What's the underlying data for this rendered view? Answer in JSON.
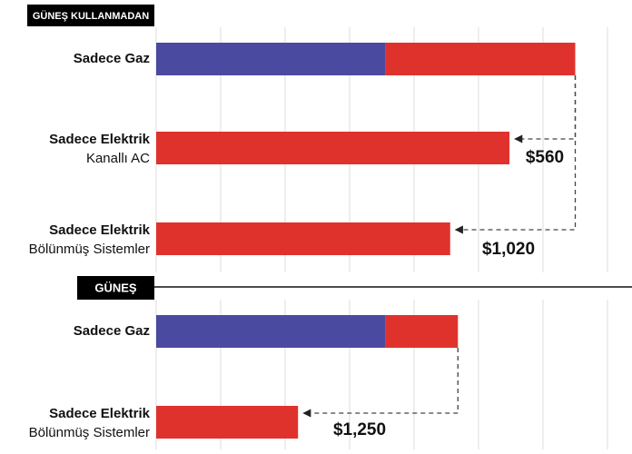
{
  "chart_data": [
    {
      "type": "bar",
      "title": "GÜNEŞ KULLANMADAN",
      "categories": [
        [
          "Sadece Gaz"
        ],
        [
          "Sadece Elektrik",
          "Kanallı AC"
        ],
        [
          "Sadece Elektrik",
          "Bölünmüş Sistemler"
        ]
      ],
      "series": [
        {
          "color": "#4a4aa0",
          "values": [
            1780,
            null,
            null
          ]
        },
        {
          "color": "#e0322c",
          "values": [
            1470,
            2740,
            2280
          ]
        }
      ],
      "xlim": [
        0,
        3500
      ],
      "xticks": [
        0,
        500,
        1000,
        1500,
        2000,
        2500,
        3000,
        3500
      ],
      "grid": true,
      "annotations": [
        "$560",
        "$1,020"
      ]
    },
    {
      "type": "bar",
      "title": "GÜNEŞ",
      "categories": [
        [
          "Sadece Gaz"
        ],
        [
          "Sadece Elektrik",
          "Bölünmüş Sistemler"
        ]
      ],
      "series": [
        {
          "color": "#4a4aa0",
          "values": [
            1780,
            null
          ]
        },
        {
          "color": "#e0322c",
          "values": [
            560,
            1100
          ]
        }
      ],
      "xlim": [
        0,
        3500
      ],
      "xticks": [
        0,
        500,
        1000,
        1500,
        2000,
        2500,
        3000,
        3500
      ],
      "grid": true,
      "annotations": [
        "$1,250"
      ]
    }
  ]
}
